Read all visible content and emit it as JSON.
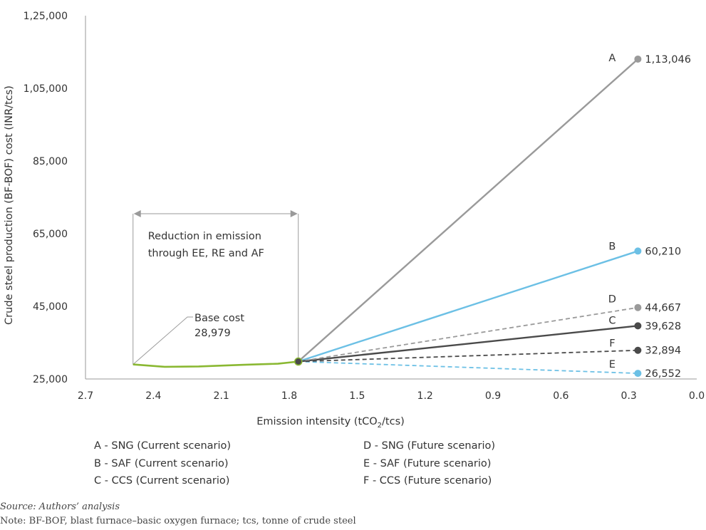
{
  "chart_data": {
    "type": "line",
    "xlabel": "Emission intensity (tCO",
    "xlabel_sub": "2",
    "xlabel_end": "/tcs)",
    "ylabel": "Crude steel production (BF-BOF) cost (INR/tcs)",
    "x_ticks": [
      "2.7",
      "2.4",
      "2.1",
      "1.8",
      "1.5",
      "1.2",
      "0.9",
      "0.6",
      "0.3",
      "0.0"
    ],
    "y_ticks": [
      "25,000",
      "45,000",
      "65,000",
      "85,000",
      "1,05,000",
      "1,25,000"
    ],
    "xlim": [
      2.7,
      0.0
    ],
    "ylim": [
      25000,
      125000
    ],
    "x_reversed": true,
    "base_curve": {
      "color": "#8ab832",
      "points": [
        [
          2.49,
          29000
        ],
        [
          2.35,
          28350
        ],
        [
          2.2,
          28450
        ],
        [
          2.0,
          28900
        ],
        [
          1.85,
          29200
        ],
        [
          1.76,
          29800
        ]
      ]
    },
    "pivot": {
      "x": 1.76,
      "y": 29800
    },
    "series": [
      {
        "letter": "A",
        "label": "1,13,046",
        "end": [
          0.26,
          113046
        ],
        "color": "#9a9a9a",
        "dashed": false
      },
      {
        "letter": "B",
        "label": "60,210",
        "end": [
          0.26,
          60210
        ],
        "color": "#6cc0e5",
        "dashed": false
      },
      {
        "letter": "C",
        "label": "39,628",
        "end": [
          0.26,
          39628
        ],
        "color": "#4a4a4a",
        "dashed": false
      },
      {
        "letter": "D",
        "label": "44,667",
        "end": [
          0.26,
          44667
        ],
        "color": "#9a9a9a",
        "dashed": true
      },
      {
        "letter": "E",
        "label": "26,552",
        "end": [
          0.26,
          26552
        ],
        "color": "#6cc0e5",
        "dashed": true
      },
      {
        "letter": "F",
        "label": "32,894",
        "end": [
          0.26,
          32894
        ],
        "color": "#4a4a4a",
        "dashed": true
      }
    ],
    "annotations": {
      "reduction_line1": "Reduction in emission",
      "reduction_line2": "through EE, RE and AF",
      "base_line1": "Base cost",
      "base_line2": "28,979"
    }
  },
  "legend": {
    "left": [
      "A - SNG (Current scenario)",
      "B - SAF (Current scenario)",
      "C - CCS (Current scenario)"
    ],
    "right": [
      "D - SNG (Future scenario)",
      "E - SAF (Future scenario)",
      "F - CCS (Future scenario)"
    ]
  },
  "notes": {
    "source": "Source: Authors’ analysis",
    "note": "Note: BF-BOF, blast furnace–basic oxygen furnace; tcs, tonne of crude steel"
  }
}
